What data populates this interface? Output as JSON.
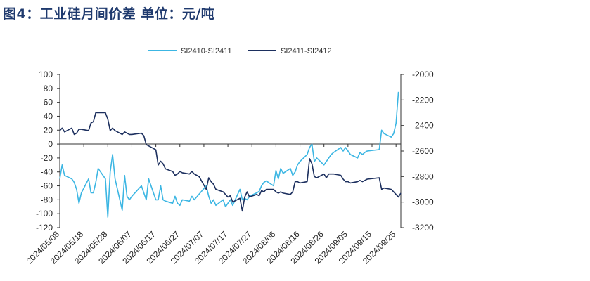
{
  "title": "图4：工业硅月间价差   单位：元/吨",
  "chart_data": {
    "type": "line",
    "legend_position": "top-center",
    "grid": false,
    "left_axis": {
      "ylim": [
        -120,
        100
      ],
      "ticks": [
        "100",
        "80",
        "60",
        "40",
        "20",
        "0",
        "-20",
        "-40",
        "-60",
        "-80",
        "-100",
        "-120"
      ]
    },
    "right_axis": {
      "ylim": [
        -3200,
        -2000
      ],
      "ticks": [
        "-2000",
        "-2200",
        "-2400",
        "-2600",
        "-2800",
        "-3000",
        "-3200"
      ]
    },
    "x_tick_labels": [
      "2024/05/08",
      "2024/05/18",
      "2024/05/28",
      "2024/06/07",
      "2024/06/17",
      "2024/06/27",
      "2024/07/07",
      "2024/07/17",
      "2024/07/27",
      "2024/08/06",
      "2024/08/16",
      "2024/08/26",
      "2024/09/05",
      "2024/09/15",
      "2024/09/25"
    ],
    "x_start": "2024-05-08",
    "x_end": "2024-09-27",
    "series": [
      {
        "name": "SI2410-SI2411",
        "axis": "left",
        "color": "#3cb6e3",
        "points": [
          [
            "2024-05-08",
            -50
          ],
          [
            "2024-05-09",
            -30
          ],
          [
            "2024-05-10",
            -45
          ],
          [
            "2024-05-13",
            -50
          ],
          [
            "2024-05-14",
            -55
          ],
          [
            "2024-05-15",
            -65
          ],
          [
            "2024-05-16",
            -85
          ],
          [
            "2024-05-17",
            -70
          ],
          [
            "2024-05-20",
            -50
          ],
          [
            "2024-05-21",
            -70
          ],
          [
            "2024-05-22",
            -70
          ],
          [
            "2024-05-23",
            -55
          ],
          [
            "2024-05-24",
            -35
          ],
          [
            "2024-05-27",
            -50
          ],
          [
            "2024-05-28",
            -105
          ],
          [
            "2024-05-29",
            -40
          ],
          [
            "2024-05-30",
            -15
          ],
          [
            "2024-05-31",
            -50
          ],
          [
            "2024-06-03",
            -95
          ],
          [
            "2024-06-04",
            -45
          ],
          [
            "2024-06-05",
            -75
          ],
          [
            "2024-06-06",
            -80
          ],
          [
            "2024-06-07",
            -75
          ],
          [
            "2024-06-11",
            -60
          ],
          [
            "2024-06-12",
            -70
          ],
          [
            "2024-06-13",
            -80
          ],
          [
            "2024-06-14",
            -50
          ],
          [
            "2024-06-17",
            -80
          ],
          [
            "2024-06-18",
            -80
          ],
          [
            "2024-06-19",
            -60
          ],
          [
            "2024-06-20",
            -80
          ],
          [
            "2024-06-21",
            -82
          ],
          [
            "2024-06-24",
            -85
          ],
          [
            "2024-06-25",
            -75
          ],
          [
            "2024-06-26",
            -85
          ],
          [
            "2024-06-27",
            -88
          ],
          [
            "2024-06-28",
            -80
          ],
          [
            "2024-07-01",
            -82
          ],
          [
            "2024-07-02",
            -75
          ],
          [
            "2024-07-03",
            -80
          ],
          [
            "2024-07-04",
            -76
          ],
          [
            "2024-07-05",
            -72
          ],
          [
            "2024-07-08",
            -60
          ],
          [
            "2024-07-09",
            -75
          ],
          [
            "2024-07-10",
            -85
          ],
          [
            "2024-07-11",
            -80
          ],
          [
            "2024-07-12",
            -88
          ],
          [
            "2024-07-15",
            -80
          ],
          [
            "2024-07-16",
            -90
          ],
          [
            "2024-07-17",
            -85
          ],
          [
            "2024-07-18",
            -80
          ],
          [
            "2024-07-19",
            -88
          ],
          [
            "2024-07-22",
            -65
          ],
          [
            "2024-07-23",
            -80
          ],
          [
            "2024-07-24",
            -78
          ],
          [
            "2024-07-25",
            -80
          ],
          [
            "2024-07-26",
            -75
          ],
          [
            "2024-07-29",
            -70
          ],
          [
            "2024-07-30",
            -68
          ],
          [
            "2024-07-31",
            -60
          ],
          [
            "2024-08-01",
            -55
          ],
          [
            "2024-08-02",
            -53
          ],
          [
            "2024-08-05",
            -60
          ],
          [
            "2024-08-06",
            -38
          ],
          [
            "2024-08-07",
            -50
          ],
          [
            "2024-08-08",
            -35
          ],
          [
            "2024-08-09",
            -42
          ],
          [
            "2024-08-12",
            -35
          ],
          [
            "2024-08-13",
            -45
          ],
          [
            "2024-08-14",
            -40
          ],
          [
            "2024-08-15",
            -30
          ],
          [
            "2024-08-16",
            -25
          ],
          [
            "2024-08-19",
            -15
          ],
          [
            "2024-08-20",
            -5
          ],
          [
            "2024-08-21",
            0
          ],
          [
            "2024-08-22",
            -25
          ],
          [
            "2024-08-23",
            -20
          ],
          [
            "2024-08-26",
            -30
          ],
          [
            "2024-08-27",
            -25
          ],
          [
            "2024-08-28",
            -20
          ],
          [
            "2024-08-29",
            -15
          ],
          [
            "2024-08-30",
            -12
          ],
          [
            "2024-09-02",
            -5
          ],
          [
            "2024-09-03",
            -10
          ],
          [
            "2024-09-04",
            -5
          ],
          [
            "2024-09-05",
            -10
          ],
          [
            "2024-09-06",
            -15
          ],
          [
            "2024-09-09",
            -20
          ],
          [
            "2024-09-10",
            -12
          ],
          [
            "2024-09-11",
            -15
          ],
          [
            "2024-09-12",
            -12
          ],
          [
            "2024-09-13",
            -10
          ],
          [
            "2024-09-18",
            -8
          ],
          [
            "2024-09-19",
            20
          ],
          [
            "2024-09-20",
            15
          ],
          [
            "2024-09-23",
            10
          ],
          [
            "2024-09-24",
            15
          ],
          [
            "2024-09-25",
            30
          ],
          [
            "2024-09-26",
            75
          ]
        ]
      },
      {
        "name": "SI2411-SI2412",
        "axis": "right",
        "color": "#1c2f5e",
        "points": [
          [
            "2024-05-08",
            -2440
          ],
          [
            "2024-05-09",
            -2420
          ],
          [
            "2024-05-10",
            -2450
          ],
          [
            "2024-05-13",
            -2420
          ],
          [
            "2024-05-14",
            -2470
          ],
          [
            "2024-05-15",
            -2460
          ],
          [
            "2024-05-16",
            -2430
          ],
          [
            "2024-05-17",
            -2430
          ],
          [
            "2024-05-20",
            -2440
          ],
          [
            "2024-05-21",
            -2380
          ],
          [
            "2024-05-22",
            -2370
          ],
          [
            "2024-05-23",
            -2300
          ],
          [
            "2024-05-24",
            -2300
          ],
          [
            "2024-05-27",
            -2300
          ],
          [
            "2024-05-28",
            -2350
          ],
          [
            "2024-05-29",
            -2440
          ],
          [
            "2024-05-30",
            -2420
          ],
          [
            "2024-05-31",
            -2440
          ],
          [
            "2024-06-03",
            -2470
          ],
          [
            "2024-06-04",
            -2450
          ],
          [
            "2024-06-05",
            -2460
          ],
          [
            "2024-06-06",
            -2470
          ],
          [
            "2024-06-07",
            -2470
          ],
          [
            "2024-06-11",
            -2460
          ],
          [
            "2024-06-12",
            -2480
          ],
          [
            "2024-06-13",
            -2550
          ],
          [
            "2024-06-14",
            -2560
          ],
          [
            "2024-06-17",
            -2590
          ],
          [
            "2024-06-18",
            -2710
          ],
          [
            "2024-06-19",
            -2680
          ],
          [
            "2024-06-20",
            -2700
          ],
          [
            "2024-06-21",
            -2740
          ],
          [
            "2024-06-24",
            -2760
          ],
          [
            "2024-06-25",
            -2790
          ],
          [
            "2024-06-26",
            -2780
          ],
          [
            "2024-06-27",
            -2760
          ],
          [
            "2024-06-28",
            -2770
          ],
          [
            "2024-07-01",
            -2780
          ],
          [
            "2024-07-02",
            -2760
          ],
          [
            "2024-07-03",
            -2780
          ],
          [
            "2024-07-04",
            -2790
          ],
          [
            "2024-07-05",
            -2800
          ],
          [
            "2024-07-08",
            -2900
          ],
          [
            "2024-07-09",
            -2810
          ],
          [
            "2024-07-10",
            -2840
          ],
          [
            "2024-07-11",
            -2860
          ],
          [
            "2024-07-12",
            -2900
          ],
          [
            "2024-07-15",
            -2920
          ],
          [
            "2024-07-16",
            -2940
          ],
          [
            "2024-07-17",
            -2960
          ],
          [
            "2024-07-18",
            -2950
          ],
          [
            "2024-07-19",
            -3000
          ],
          [
            "2024-07-22",
            -2970
          ],
          [
            "2024-07-23",
            -3070
          ],
          [
            "2024-07-24",
            -2960
          ],
          [
            "2024-07-25",
            -2920
          ],
          [
            "2024-07-26",
            -2960
          ],
          [
            "2024-07-29",
            -2940
          ],
          [
            "2024-07-30",
            -2950
          ],
          [
            "2024-07-31",
            -2910
          ],
          [
            "2024-08-01",
            -2920
          ],
          [
            "2024-08-02",
            -2900
          ],
          [
            "2024-08-05",
            -2900
          ],
          [
            "2024-08-06",
            -2920
          ],
          [
            "2024-08-07",
            -2930
          ],
          [
            "2024-08-08",
            -2920
          ],
          [
            "2024-08-09",
            -2930
          ],
          [
            "2024-08-12",
            -2940
          ],
          [
            "2024-08-13",
            -2920
          ],
          [
            "2024-08-14",
            -2840
          ],
          [
            "2024-08-15",
            -2840
          ],
          [
            "2024-08-16",
            -2850
          ],
          [
            "2024-08-19",
            -2840
          ],
          [
            "2024-08-20",
            -2660
          ],
          [
            "2024-08-21",
            -2700
          ],
          [
            "2024-08-22",
            -2800
          ],
          [
            "2024-08-23",
            -2810
          ],
          [
            "2024-08-26",
            -2780
          ],
          [
            "2024-08-27",
            -2810
          ],
          [
            "2024-08-28",
            -2780
          ],
          [
            "2024-08-29",
            -2780
          ],
          [
            "2024-08-30",
            -2780
          ],
          [
            "2024-09-02",
            -2790
          ],
          [
            "2024-09-03",
            -2820
          ],
          [
            "2024-09-04",
            -2840
          ],
          [
            "2024-09-05",
            -2840
          ],
          [
            "2024-09-06",
            -2850
          ],
          [
            "2024-09-09",
            -2840
          ],
          [
            "2024-09-10",
            -2830
          ],
          [
            "2024-09-11",
            -2840
          ],
          [
            "2024-09-12",
            -2830
          ],
          [
            "2024-09-13",
            -2820
          ],
          [
            "2024-09-18",
            -2810
          ],
          [
            "2024-09-19",
            -2900
          ],
          [
            "2024-09-20",
            -2890
          ],
          [
            "2024-09-23",
            -2900
          ],
          [
            "2024-09-24",
            -2920
          ],
          [
            "2024-09-25",
            -2940
          ],
          [
            "2024-09-26",
            -2960
          ],
          [
            "2024-09-27",
            -2930
          ]
        ]
      }
    ]
  }
}
